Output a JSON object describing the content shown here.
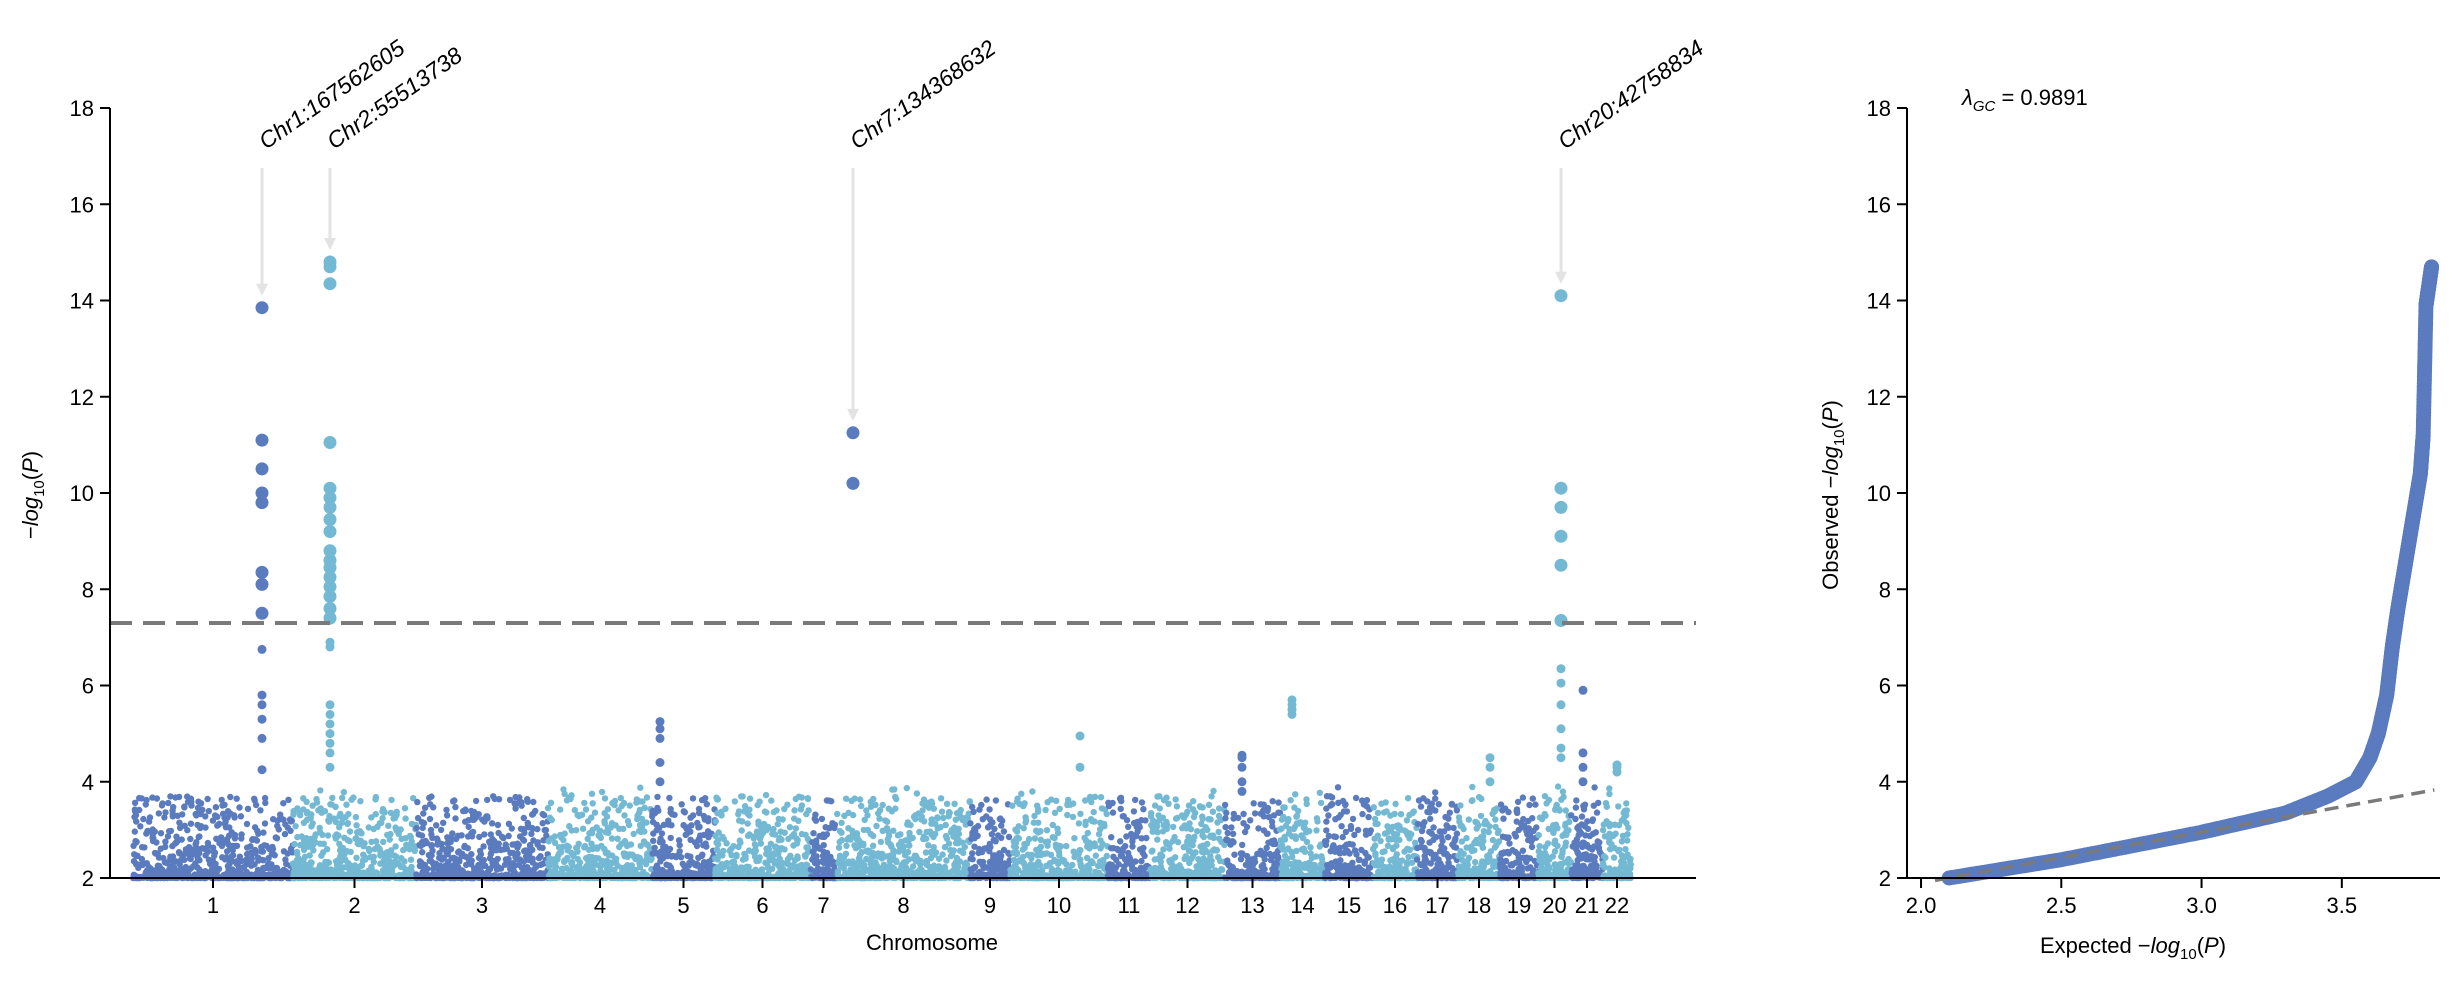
{
  "chart_data": [
    {
      "type": "scatter",
      "subtype": "manhattan",
      "xlabel": "Chromosome",
      "ylabel": "−log10(P)",
      "ylim": [
        2,
        18
      ],
      "yticks": [
        2,
        4,
        6,
        8,
        10,
        12,
        14,
        16,
        18
      ],
      "significance_threshold": 7.3,
      "colors": [
        "#5b7bbf",
        "#74b9d3"
      ],
      "chromosomes": [
        "1",
        "2",
        "3",
        "4",
        "5",
        "6",
        "7",
        "8",
        "9",
        "10",
        "11",
        "12",
        "13",
        "14",
        "15",
        "16",
        "17",
        "18",
        "19",
        "20",
        "21",
        "22"
      ],
      "annotations": [
        {
          "label": "Chr1:167562605",
          "chrom": "1",
          "value": 13.85
        },
        {
          "label": "Chr2:55513738",
          "chrom": "2",
          "value": 14.8
        },
        {
          "label": "Chr7:134368632",
          "chrom": "7",
          "value": 11.25
        },
        {
          "label": "Chr20:42758834",
          "chrom": "20",
          "value": 14.1
        }
      ],
      "peaks": [
        {
          "chrom": "1",
          "values": [
            13.85,
            11.1,
            10.5,
            10.0,
            9.8,
            8.35,
            8.1,
            7.5,
            6.75,
            5.8,
            5.6,
            5.3,
            4.9,
            4.25
          ]
        },
        {
          "chrom": "2",
          "values": [
            14.8,
            14.7,
            14.35,
            11.05,
            10.1,
            9.9,
            9.7,
            9.45,
            9.2,
            8.8,
            8.6,
            8.45,
            8.25,
            8.05,
            7.85,
            7.6,
            7.4,
            6.9,
            6.8,
            5.6,
            5.4,
            5.2,
            5.0,
            4.8,
            4.6,
            4.3
          ]
        },
        {
          "chrom": "5",
          "values": [
            5.25,
            5.1,
            4.9,
            4.4,
            4.0
          ]
        },
        {
          "chrom": "7",
          "values": [
            11.25,
            10.2
          ]
        },
        {
          "chrom": "10",
          "values": [
            4.95,
            4.3
          ]
        },
        {
          "chrom": "13",
          "values": [
            4.55,
            4.5,
            4.3,
            4.0,
            3.8
          ]
        },
        {
          "chrom": "14",
          "values": [
            5.7,
            5.6,
            5.5,
            5.4
          ]
        },
        {
          "chrom": "18",
          "values": [
            4.5,
            4.3,
            4.0
          ]
        },
        {
          "chrom": "20",
          "values": [
            14.1,
            10.1,
            9.7,
            9.1,
            8.5,
            7.35,
            6.35,
            6.05,
            5.6,
            5.1,
            4.7,
            4.5
          ]
        },
        {
          "chrom": "21",
          "values": [
            5.9,
            4.6,
            4.3,
            4.0
          ]
        },
        {
          "chrom": "22",
          "values": [
            4.35,
            4.3,
            4.2
          ]
        }
      ]
    },
    {
      "type": "scatter",
      "subtype": "qq",
      "xlabel": "Expected −log10(P)",
      "ylabel": "Observed −log10(P)",
      "xlim": [
        1.95,
        3.85
      ],
      "ylim": [
        2,
        18
      ],
      "xticks": [
        "2.0",
        "2.5",
        "3.0",
        "3.5"
      ],
      "yticks": [
        2,
        4,
        6,
        8,
        10,
        12,
        14,
        16,
        18
      ],
      "lambda_gc_symbol": "λ",
      "lambda_gc_subscript": "GC",
      "lambda_gc_value": "= 0.9891",
      "color": "#5b7bbf",
      "diagonal": [
        [
          2.05,
          1.95
        ],
        [
          3.83,
          3.83
        ]
      ],
      "curve": [
        [
          2.1,
          2.0
        ],
        [
          2.5,
          2.38
        ],
        [
          3.0,
          2.95
        ],
        [
          3.3,
          3.35
        ],
        [
          3.45,
          3.7
        ],
        [
          3.55,
          4.0
        ],
        [
          3.6,
          4.5
        ],
        [
          3.63,
          5.0
        ],
        [
          3.66,
          5.8
        ],
        [
          3.68,
          6.8
        ],
        [
          3.7,
          7.6
        ],
        [
          3.72,
          8.3
        ],
        [
          3.74,
          9.0
        ],
        [
          3.76,
          9.7
        ],
        [
          3.78,
          10.4
        ],
        [
          3.79,
          11.2
        ],
        [
          3.8,
          13.9
        ],
        [
          3.81,
          14.3
        ],
        [
          3.82,
          14.7
        ]
      ]
    }
  ]
}
